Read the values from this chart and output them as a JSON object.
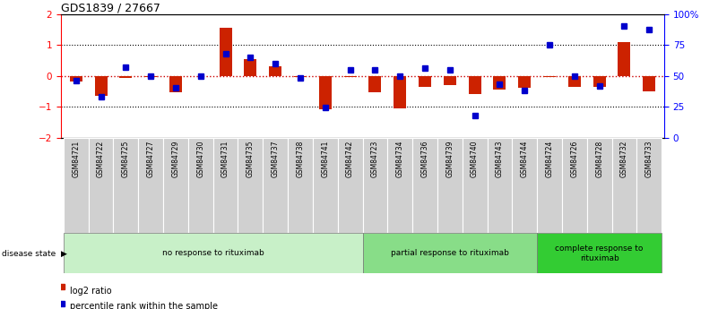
{
  "title": "GDS1839 / 27667",
  "samples": [
    "GSM84721",
    "GSM84722",
    "GSM84725",
    "GSM84727",
    "GSM84729",
    "GSM84730",
    "GSM84731",
    "GSM84735",
    "GSM84737",
    "GSM84738",
    "GSM84741",
    "GSM84742",
    "GSM84723",
    "GSM84734",
    "GSM84736",
    "GSM84739",
    "GSM84740",
    "GSM84743",
    "GSM84744",
    "GSM84724",
    "GSM84726",
    "GSM84728",
    "GSM84732",
    "GSM84733"
  ],
  "log2_ratio": [
    -0.2,
    -0.65,
    -0.08,
    -0.05,
    -0.55,
    -0.02,
    1.55,
    0.55,
    0.3,
    -0.05,
    -1.08,
    -0.05,
    -0.55,
    -1.05,
    -0.35,
    -0.3,
    -0.6,
    -0.45,
    -0.4,
    -0.05,
    -0.35,
    -0.35,
    1.1,
    -0.5
  ],
  "percentile_rank": [
    46,
    33,
    57,
    50,
    40,
    50,
    68,
    65,
    60,
    48,
    24,
    55,
    55,
    50,
    56,
    55,
    18,
    43,
    38,
    75,
    50,
    42,
    90,
    87
  ],
  "groups": [
    {
      "label": "no response to rituximab",
      "start": 0,
      "end": 12,
      "color": "#c8f0c8"
    },
    {
      "label": "partial response to rituximab",
      "start": 12,
      "end": 19,
      "color": "#88dd88"
    },
    {
      "label": "complete response to\nrituximab",
      "start": 19,
      "end": 24,
      "color": "#33cc33"
    }
  ],
  "bar_color_red": "#cc2200",
  "bar_color_blue": "#0000cc",
  "ylim_left": [
    -2.0,
    2.0
  ],
  "ylim_right": [
    0,
    100
  ],
  "yticks_left": [
    -2,
    -1,
    0,
    1,
    2
  ],
  "yticks_right": [
    0,
    25,
    50,
    75,
    100
  ],
  "ytick_labels_right": [
    "0",
    "25",
    "50",
    "75",
    "100%"
  ],
  "background_color": "#ffffff",
  "disease_state_label": "disease state",
  "legend_red_label": "log2 ratio",
  "legend_blue_label": "percentile rank within the sample"
}
